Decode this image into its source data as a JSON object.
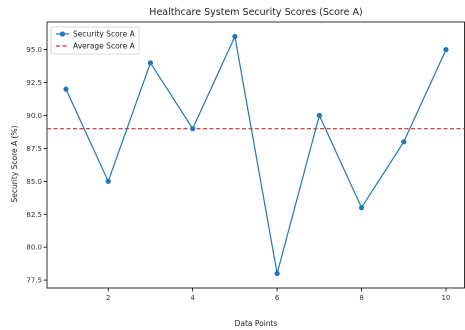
{
  "chart_data": {
    "type": "line",
    "title": "Healthcare System Security Scores (Score A)",
    "xlabel": "Data Points",
    "ylabel": "Security Score A (%)",
    "x": [
      1,
      2,
      3,
      4,
      5,
      6,
      7,
      8,
      9,
      10
    ],
    "series": [
      {
        "name": "Security Score A",
        "values": [
          92,
          85,
          94,
          89,
          96,
          78,
          90,
          83,
          88,
          95
        ],
        "color": "#1f77b4"
      }
    ],
    "reference_line": {
      "name": "Average Score A",
      "value": 89,
      "color": "#d62728",
      "style": "dashed"
    },
    "xlim": [
      0.55,
      10.45
    ],
    "ylim": [
      76.9,
      97.1
    ],
    "xticks": [
      2,
      4,
      6,
      8,
      10
    ],
    "yticks": [
      77.5,
      80.0,
      82.5,
      85.0,
      87.5,
      90.0,
      92.5,
      95.0
    ],
    "ytick_labels": [
      "77.5",
      "80.0",
      "82.5",
      "85.0",
      "87.5",
      "90.0",
      "92.5",
      "95.0"
    ],
    "grid": false,
    "legend_position": "upper-left"
  }
}
